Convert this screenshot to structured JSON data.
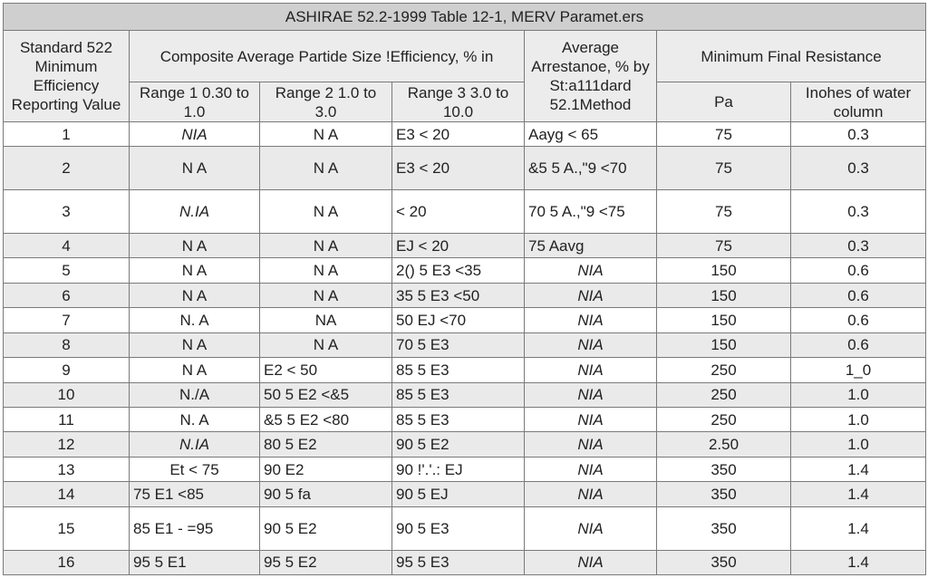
{
  "title": "ASHIRAE 52.2-1999 Table 12-1, MERV Paramet.ers",
  "headers": {
    "col1": "Standard 522 Minimum Efficiency Reporting Value",
    "composite": "Composite Average Partide Size !Efficiency, % in",
    "arrestance": "Average Arrestanoe, % by St:a111dard 52.1Method",
    "resistance": "Minimum Final Resistance",
    "range1": "Range 1 0.30 to 1.0",
    "range2": "Range 2 1.0 to 3.0",
    "range3": "Range 3 3.0 to 10.0",
    "pa": "Pa",
    "inches": "Inohes of water column"
  },
  "rows": [
    {
      "merv": "1",
      "r1": "NIA",
      "r2": "N A",
      "r3": "E3 < 20",
      "arr": "Aayg < 65",
      "pa": "75",
      "in": "0.3"
    },
    {
      "merv": "2",
      "r1": "N A",
      "r2": "N A",
      "r3": "E3 < 20",
      "arr": "&5 5 A.,\"9 <70",
      "pa": "75",
      "in": "0.3"
    },
    {
      "merv": "3",
      "r1": "N.IA",
      "r2": "N A",
      "r3": "< 20",
      "arr": "70 5 A.,\"9 <75",
      "pa": "75",
      "in": "0.3"
    },
    {
      "merv": "4",
      "r1": "N A",
      "r2": "N A",
      "r3": "EJ < 20",
      "arr": "75 Aavg",
      "pa": "75",
      "in": "0.3"
    },
    {
      "merv": "5",
      "r1": "N A",
      "r2": "N A",
      "r3": "2() 5 E3 <35",
      "arr": "NIA",
      "pa": "150",
      "in": "0.6"
    },
    {
      "merv": "6",
      "r1": "N A",
      "r2": "N A",
      "r3": "35 5 E3 <50",
      "arr": "NIA",
      "pa": "150",
      "in": "0.6"
    },
    {
      "merv": "7",
      "r1": "N. A",
      "r2": "NA",
      "r3": "50 EJ <70",
      "arr": "NIA",
      "pa": "150",
      "in": "0.6"
    },
    {
      "merv": "8",
      "r1": "N A",
      "r2": "N A",
      "r3": "70 5 E3",
      "arr": "NIA",
      "pa": "150",
      "in": "0.6"
    },
    {
      "merv": "9",
      "r1": "N A",
      "r2": "E2 < 50",
      "r3": "85 5 E3",
      "arr": "NIA",
      "pa": "250",
      "in": "1_0"
    },
    {
      "merv": "10",
      "r1": "N./A",
      "r2": "50 5 E2 <&5",
      "r3": "85 5 E3",
      "arr": "NIA",
      "pa": "250",
      "in": "1.0"
    },
    {
      "merv": "11",
      "r1": "N. A",
      "r2": "&5 5 E2 <80",
      "r3": "85 5 E3",
      "arr": "NIA",
      "pa": "250",
      "in": "1.0"
    },
    {
      "merv": "12",
      "r1": "N.IA",
      "r2": "80 5 E2",
      "r3": "90 5 E2",
      "arr": "NIA",
      "pa": "2.50",
      "in": "1.0"
    },
    {
      "merv": "13",
      "r1": "Et < 75",
      "r2": "90 E2",
      "r3": "90 !'.'.: EJ",
      "arr": "NIA",
      "pa": "350",
      "in": "1.4"
    },
    {
      "merv": "14",
      "r1": "75 E1 <85",
      "r2": "90 5 fa",
      "r3": "90 5 EJ",
      "arr": "NIA",
      "pa": "350",
      "in": "1.4"
    },
    {
      "merv": "15",
      "r1": "85 E1 - =95",
      "r2": "90 5 E2",
      "r3": "90 5 E3",
      "arr": "NIA",
      "pa": "350",
      "in": "1.4"
    },
    {
      "merv": "16",
      "r1": "95 5 E1",
      "r2": "95 5 E2",
      "r3": "95 5 E3",
      "arr": "NIA",
      "pa": "350",
      "in": "1.4"
    }
  ]
}
